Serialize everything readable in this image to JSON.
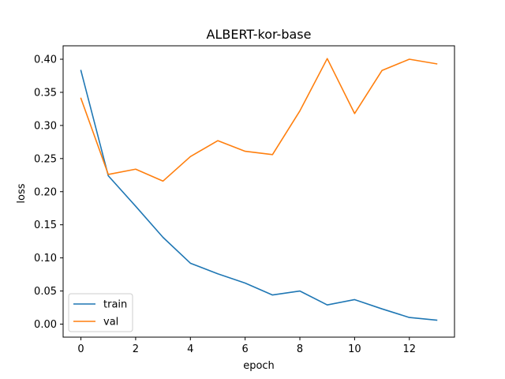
{
  "chart_data": {
    "type": "line",
    "title": "ALBERT-kor-base",
    "xlabel": "epoch",
    "ylabel": "loss",
    "x": [
      0,
      1,
      2,
      3,
      4,
      5,
      6,
      7,
      8,
      9,
      10,
      11,
      12,
      13
    ],
    "xlim": [
      -0.65,
      13.65
    ],
    "ylim": [
      -0.0197,
      0.4203
    ],
    "xticks": [
      0,
      2,
      4,
      6,
      8,
      10,
      12
    ],
    "xtick_labels": [
      "0",
      "2",
      "4",
      "6",
      "8",
      "10",
      "12"
    ],
    "yticks": [
      0.0,
      0.05,
      0.1,
      0.15,
      0.2,
      0.25,
      0.3,
      0.35,
      0.4
    ],
    "ytick_labels": [
      "0.00",
      "0.05",
      "0.10",
      "0.15",
      "0.20",
      "0.25",
      "0.30",
      "0.35",
      "0.40"
    ],
    "grid": false,
    "legend_position": "bottom-left",
    "series": [
      {
        "name": "train",
        "color": "#1f77b4",
        "values": [
          0.383,
          0.224,
          0.178,
          0.131,
          0.092,
          0.076,
          0.062,
          0.044,
          0.05,
          0.029,
          0.037,
          0.023,
          0.01,
          0.006
        ]
      },
      {
        "name": "val",
        "color": "#ff7f0e",
        "values": [
          0.341,
          0.226,
          0.234,
          0.216,
          0.253,
          0.277,
          0.261,
          0.256,
          0.322,
          0.401,
          0.318,
          0.383,
          0.4,
          0.393
        ]
      }
    ]
  }
}
